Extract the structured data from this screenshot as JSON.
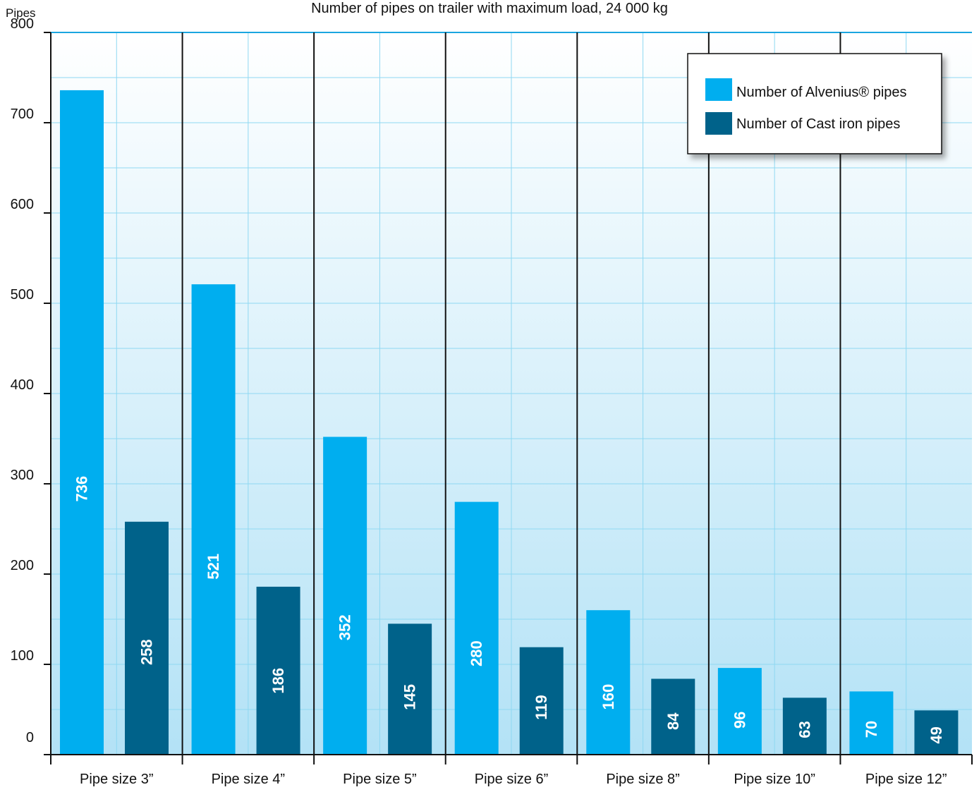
{
  "chart_data": {
    "type": "bar",
    "title": "Number of pipes on trailer with maximum load, 24 000 kg",
    "ylabel": "Pipes",
    "xlabel": "",
    "ylim": [
      0,
      800
    ],
    "yticks": [
      0,
      100,
      200,
      300,
      400,
      500,
      600,
      700,
      800
    ],
    "grid": true,
    "legend_position": "top-right",
    "categories": [
      "Pipe size 3”",
      "Pipe size 4”",
      "Pipe size 5”",
      "Pipe size 6”",
      "Pipe size 8”",
      "Pipe size 10”",
      "Pipe size 12”"
    ],
    "series": [
      {
        "name": "Number of Alvenius® pipes",
        "color": "#00aeef",
        "values": [
          736,
          521,
          352,
          280,
          160,
          96,
          70
        ]
      },
      {
        "name": "Number of Cast iron pipes",
        "color": "#00628a",
        "values": [
          258,
          186,
          145,
          119,
          84,
          63,
          49
        ]
      }
    ],
    "data_labels": [
      [
        "736",
        "521",
        "352",
        "280",
        "160",
        "96",
        "70"
      ],
      [
        "258",
        "186",
        "145",
        "119",
        "84",
        "63",
        "49"
      ]
    ]
  }
}
